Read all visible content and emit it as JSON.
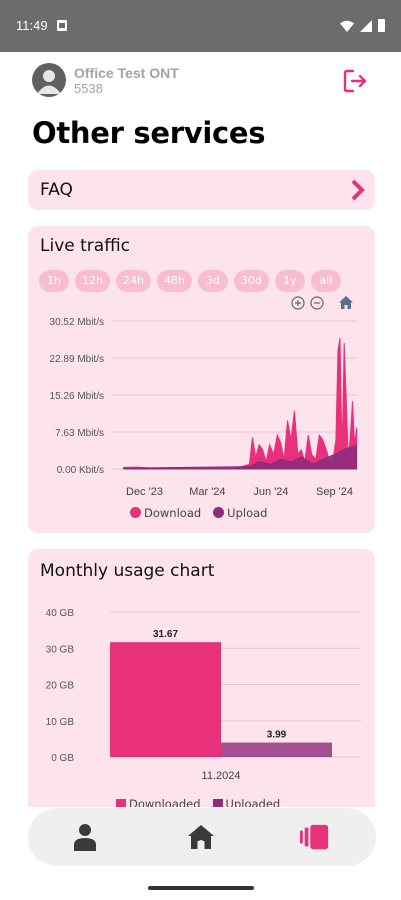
{
  "status_bar": {
    "time": "11:49"
  },
  "header": {
    "user_name": "Office Test ONT",
    "user_id": "5538"
  },
  "page_title": "Other services",
  "faq": {
    "label": "FAQ"
  },
  "live_traffic": {
    "title": "Live traffic",
    "ranges": [
      "1h",
      "12h",
      "24h",
      "48h",
      "3d",
      "30d",
      "1y",
      "all"
    ],
    "legend": [
      "Download",
      "Upload"
    ]
  },
  "monthly_usage": {
    "title": "Monthly usage chart",
    "legend": [
      "Downloaded",
      "Uploaded"
    ]
  },
  "colors": {
    "download": "#e8317a",
    "upload": "#8c2c7c",
    "card_bg": "#fde4ec",
    "accent": "#e8317a"
  },
  "chart_data": [
    {
      "type": "area",
      "title": "Live traffic",
      "y_unit": "Mbit/s",
      "yticks": [
        "0.00 Kbit/s",
        "7.63 Mbit/s",
        "15.26 Mbit/s",
        "22.89 Mbit/s",
        "30.52 Mbit/s"
      ],
      "ylim": [
        0,
        30.52
      ],
      "xticks": [
        "Dec '23",
        "Mar '24",
        "Jun '24",
        "Sep '24"
      ],
      "series": [
        {
          "name": "Download",
          "x": [
            "2023-11-01",
            "2023-11-20",
            "2023-12-10",
            "2024-01-10",
            "2024-02-10",
            "2024-03-10",
            "2024-04-10",
            "2024-05-01",
            "2024-05-05",
            "2024-05-10",
            "2024-05-15",
            "2024-05-20",
            "2024-05-25",
            "2024-05-30",
            "2024-06-05",
            "2024-06-10",
            "2024-06-15",
            "2024-06-20",
            "2024-06-25",
            "2024-06-30",
            "2024-07-05",
            "2024-07-10",
            "2024-07-15",
            "2024-07-20",
            "2024-07-25",
            "2024-07-30",
            "2024-08-05",
            "2024-08-10",
            "2024-08-15",
            "2024-08-20",
            "2024-08-25",
            "2024-08-30",
            "2024-09-03",
            "2024-09-06",
            "2024-09-09",
            "2024-09-12",
            "2024-09-15",
            "2024-09-18",
            "2024-09-21",
            "2024-09-24",
            "2024-09-27",
            "2024-09-30",
            "2024-10-03"
          ],
          "values": [
            0.3,
            0.4,
            0.2,
            0.1,
            0.1,
            0.1,
            0.1,
            1,
            6.5,
            2.5,
            5,
            4,
            1.5,
            5,
            3,
            7,
            5.5,
            2,
            10,
            6,
            12,
            3,
            4,
            1.5,
            7,
            3,
            2,
            7,
            6,
            4,
            1.5,
            2,
            6,
            24.5,
            27,
            3,
            26,
            14,
            2,
            7,
            14,
            5,
            8.5
          ]
        },
        {
          "name": "Upload",
          "x": [
            "2023-11-01",
            "2023-11-20",
            "2024-05-01",
            "2024-05-15",
            "2024-06-01",
            "2024-06-15",
            "2024-07-01",
            "2024-07-15",
            "2024-08-01",
            "2024-08-15",
            "2024-09-01",
            "2024-09-15",
            "2024-10-03"
          ],
          "values": [
            0.2,
            0.2,
            0.5,
            1.5,
            1,
            2,
            1.5,
            2.5,
            1,
            2,
            3,
            4,
            5
          ]
        }
      ]
    },
    {
      "type": "bar",
      "title": "Monthly usage chart",
      "categories": [
        "11.2024"
      ],
      "yticks": [
        "0 GB",
        "10 GB",
        "20 GB",
        "30 GB",
        "40 GB"
      ],
      "ylim": [
        0,
        40
      ],
      "series": [
        {
          "name": "Downloaded",
          "values": [
            31.67
          ],
          "labels": [
            "31.67"
          ]
        },
        {
          "name": "Uploaded",
          "values": [
            3.99
          ],
          "labels": [
            "3.99"
          ]
        }
      ]
    }
  ]
}
